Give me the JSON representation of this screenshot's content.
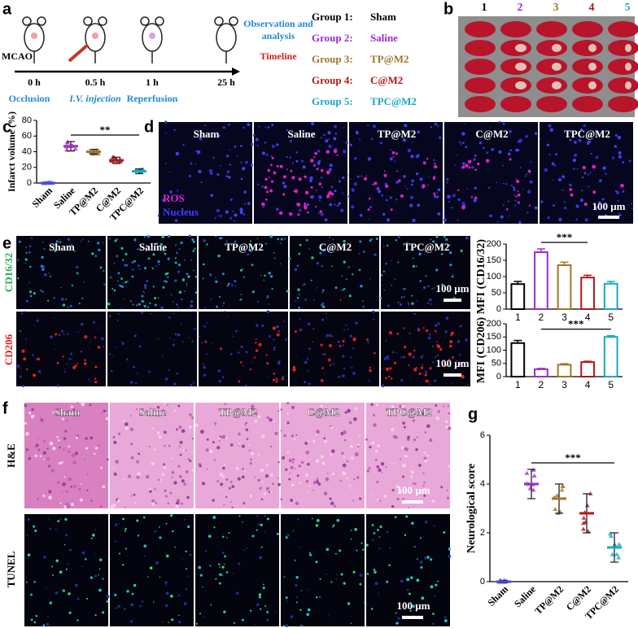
{
  "panel_letters": [
    "a",
    "b",
    "c",
    "d",
    "e",
    "f",
    "g"
  ],
  "timeline": {
    "model": "MCAO",
    "times": [
      "0 h",
      "0.5 h",
      "1 h",
      "25 h"
    ],
    "events": [
      "Occlusion",
      "I.V. injection",
      "Reperfusion"
    ],
    "observation": "Observation and analysis",
    "label": "Timeline"
  },
  "groups": [
    {
      "label": "Group 1:",
      "name": "Sham",
      "color": "#000000"
    },
    {
      "label": "Group 2:",
      "name": "Saline",
      "color": "#9b30c8"
    },
    {
      "label": "Group 3:",
      "name": "TP@M2",
      "color": "#a0762a"
    },
    {
      "label": "Group 4:",
      "name": "C@M2",
      "color": "#b01818"
    },
    {
      "label": "Group 5:",
      "name": "TPC@M2",
      "color": "#1aa7c4"
    }
  ],
  "brain_slices": {
    "labels": [
      "1",
      "2",
      "3",
      "4",
      "5"
    ]
  },
  "ros_panel": {
    "columns": [
      "Sham",
      "Saline",
      "TP@M2",
      "C@M2",
      "TPC@M2"
    ],
    "legend": [
      "ROS",
      "Nucleus"
    ],
    "scale_bar": "100 μm"
  },
  "macrophage_panel": {
    "columns": [
      "Sham",
      "Saline",
      "TP@M2",
      "C@M2",
      "TPC@M2"
    ],
    "rows": [
      "CD16/32",
      "CD206"
    ],
    "scale_bars": [
      "100 μm",
      "100 μm"
    ]
  },
  "histology_panel": {
    "columns": [
      "Sham",
      "Saline",
      "TP@M2",
      "C@M2",
      "TPC@M2"
    ],
    "rows": [
      "H&E",
      "TUNEL"
    ],
    "scale_bars": [
      "100 μm",
      "100 μm"
    ]
  },
  "chart_data": [
    {
      "type": "dot",
      "ylabel": "Infarct volume (%)",
      "categories": [
        "Sham",
        "Saline",
        "TP@M2",
        "C@M2",
        "TPC@M2"
      ],
      "values": [
        0,
        47,
        40,
        29,
        15
      ],
      "errors": [
        0.5,
        6,
        3,
        4,
        3
      ],
      "colors": [
        "#4a4ae0",
        "#9b30c8",
        "#a0762a",
        "#b01818",
        "#1aa7c4"
      ],
      "ylim": [
        0,
        80
      ],
      "yticks": [
        0,
        20,
        40,
        60,
        80
      ],
      "annotation": "**"
    },
    {
      "type": "bar",
      "ylabel": "MFI (CD16/32)",
      "categories": [
        "1",
        "2",
        "3",
        "4",
        "5"
      ],
      "values": [
        77,
        175,
        135,
        97,
        78
      ],
      "errors": [
        8,
        10,
        9,
        7,
        7
      ],
      "colors": [
        "#000000",
        "#9b30c8",
        "#a0762a",
        "#b01818",
        "#1aa7c4"
      ],
      "ylim": [
        0,
        200
      ],
      "yticks": [
        0,
        50,
        100,
        150,
        200
      ],
      "annotation": "***"
    },
    {
      "type": "bar",
      "ylabel": "MFI (CD206)",
      "categories": [
        "1",
        "2",
        "3",
        "4",
        "5"
      ],
      "values": [
        127,
        28,
        45,
        55,
        150
      ],
      "errors": [
        10,
        3,
        4,
        3,
        5
      ],
      "colors": [
        "#000000",
        "#9b30c8",
        "#a0762a",
        "#b01818",
        "#1aa7c4"
      ],
      "ylim": [
        0,
        200
      ],
      "yticks": [
        0,
        50,
        100,
        150,
        200
      ],
      "annotation": "***"
    },
    {
      "type": "dot",
      "ylabel": "Neurological score",
      "categories": [
        "Sham",
        "Saline",
        "TP@M2",
        "C@M2",
        "TPC@M2"
      ],
      "values": [
        0,
        4,
        3.4,
        2.8,
        1.4
      ],
      "errors": [
        0.05,
        0.6,
        0.6,
        0.8,
        0.6
      ],
      "colors": [
        "#4a4ae0",
        "#9b30c8",
        "#a0762a",
        "#b01818",
        "#1aa7c4"
      ],
      "ylim": [
        0,
        6
      ],
      "yticks": [
        0,
        2,
        4,
        6
      ],
      "annotation": "***"
    }
  ]
}
